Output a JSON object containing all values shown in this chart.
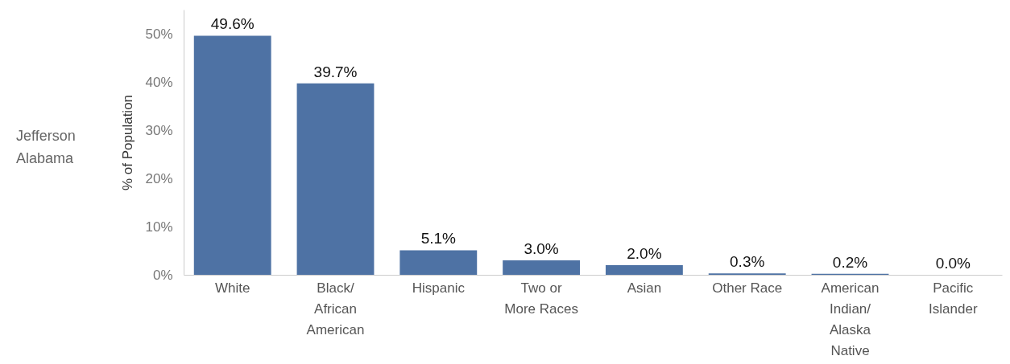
{
  "chart_data": {
    "type": "bar",
    "ylabel": "% of Population",
    "annotations": [
      "Jefferson\nAlabama"
    ],
    "categories": [
      "White",
      "Black/\nAfrican\nAmerican",
      "Hispanic",
      "Two or\nMore Races",
      "Asian",
      "Other Race",
      "American\nIndian/\nAlaska\nNative",
      "Pacific\nIslander"
    ],
    "values": [
      49.6,
      39.7,
      5.1,
      3.0,
      2.0,
      0.3,
      0.2,
      0.0
    ],
    "value_labels": [
      "49.6%",
      "39.7%",
      "5.1%",
      "3.0%",
      "2.0%",
      "0.3%",
      "0.2%",
      "0.0%"
    ],
    "color": "#4e72a4",
    "ylim": [
      0,
      55
    ],
    "yticks": [
      {
        "value": 0,
        "label": "0%"
      },
      {
        "value": 10,
        "label": "10%"
      },
      {
        "value": 20,
        "label": "20%"
      },
      {
        "value": 30,
        "label": "30%"
      },
      {
        "value": 40,
        "label": "40%"
      },
      {
        "value": 50,
        "label": "50%"
      }
    ],
    "grid": false
  }
}
